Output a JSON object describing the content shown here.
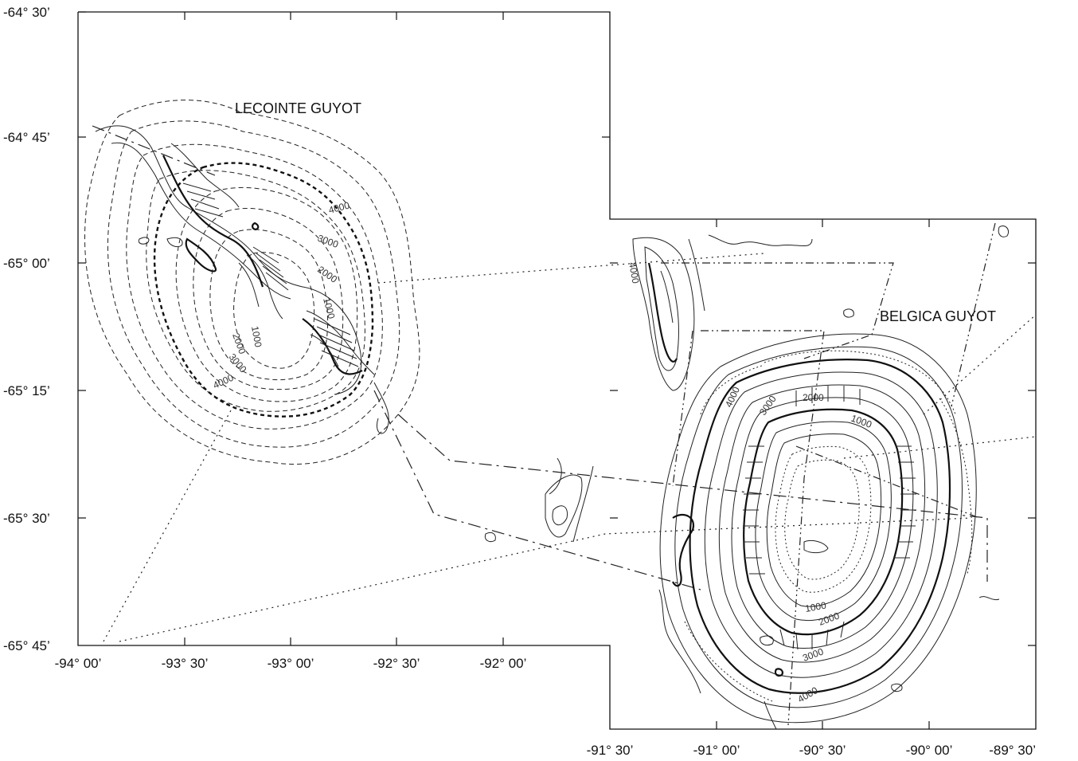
{
  "map": {
    "left_panel": {
      "title": "LECOINTE GUYOT",
      "lat_labels": [
        "-64° 30’",
        "-64° 45’",
        "-65° 00’",
        "-65° 15’",
        "-65° 30’",
        "-65° 45’"
      ],
      "lon_labels": [
        "-94° 00’",
        "-93° 30’",
        "-93° 00’",
        "-92° 30’",
        "-92° 00’"
      ],
      "contour_labels": [
        "4000",
        "3000",
        "2000",
        "1000",
        "1000",
        "2000",
        "3000",
        "4000"
      ]
    },
    "right_panel": {
      "title": "BELGICA GUYOT",
      "lon_labels": [
        "-91° 30’",
        "-91° 00’",
        "-90° 30’",
        "-90° 00’",
        "-89° 30’"
      ],
      "contour_labels": [
        "4000",
        "3000",
        "2000",
        "1000",
        "1000",
        "2000",
        "3000",
        "4000",
        "4000"
      ]
    }
  }
}
